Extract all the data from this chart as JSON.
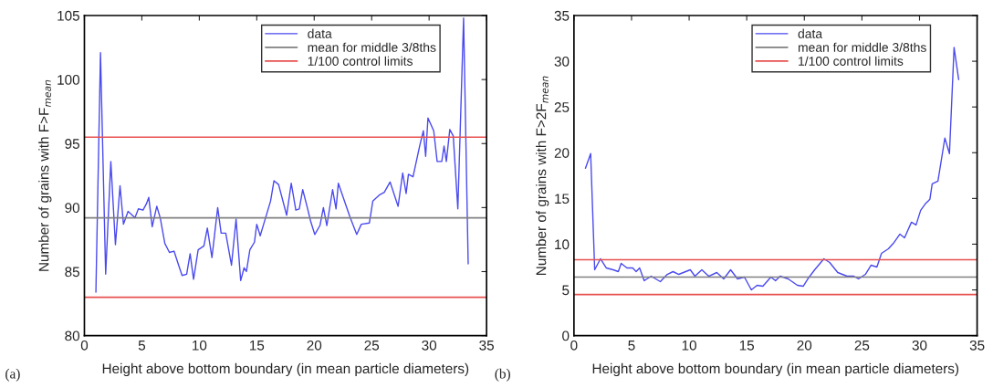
{
  "chart_data": [
    {
      "type": "line",
      "xlabel": "Height above bottom boundary (in mean particle diameters)",
      "ylabel": "Number of grains with F>F$_{mean}$",
      "annotations": [
        "(a)"
      ],
      "xlim": [
        0,
        35
      ],
      "xticks": [
        0,
        5,
        10,
        15,
        20,
        25,
        30,
        35
      ],
      "ylim": [
        80,
        105
      ],
      "yticks": [
        80,
        85,
        90,
        95,
        100,
        105
      ],
      "legend": "top right",
      "grid": false,
      "series": [
        {
          "name": "data",
          "color": "#4a4aee",
          "x": [
            1.0,
            1.4,
            1.85,
            2.3,
            2.7,
            3.1,
            3.4,
            3.8,
            4.4,
            4.7,
            5.1,
            5.4,
            5.6,
            5.9,
            6.3,
            6.6,
            7.0,
            7.4,
            7.8,
            8.2,
            8.5,
            8.9,
            9.2,
            9.5,
            9.9,
            10.4,
            10.7,
            11.1,
            11.6,
            11.9,
            12.3,
            12.8,
            13.2,
            13.6,
            13.9,
            14.1,
            14.4,
            14.8,
            15.0,
            15.3,
            15.7,
            16.2,
            16.5,
            16.9,
            17.6,
            18.0,
            18.4,
            18.7,
            19.0,
            19.4,
            19.7,
            20.05,
            20.5,
            20.8,
            21.1,
            21.6,
            21.9,
            22.1,
            23.1,
            23.7,
            24.1,
            24.8,
            25.1,
            25.7,
            26.1,
            26.6,
            27.3,
            27.7,
            28.0,
            28.2,
            28.6,
            29.2,
            29.5,
            29.7,
            29.9,
            30.4,
            30.7,
            31.1,
            31.3,
            31.5,
            31.8,
            32.1,
            32.5,
            33.0,
            33.4
          ],
          "values": [
            83.4,
            102.1,
            84.8,
            93.6,
            87.1,
            91.7,
            88.7,
            89.7,
            89.2,
            89.9,
            89.8,
            90.3,
            90.8,
            88.5,
            90.1,
            89.2,
            87.2,
            86.5,
            86.6,
            85.5,
            84.7,
            84.8,
            86.4,
            84.4,
            86.7,
            87.0,
            88.4,
            86.1,
            90.0,
            88.0,
            88.0,
            85.5,
            89.1,
            84.3,
            85.3,
            85.0,
            86.7,
            87.3,
            88.7,
            87.8,
            89.0,
            90.5,
            92.1,
            91.8,
            89.4,
            91.9,
            89.8,
            89.9,
            91.4,
            90.0,
            88.9,
            87.9,
            88.6,
            90.0,
            88.6,
            91.4,
            89.9,
            91.9,
            89.3,
            87.9,
            88.7,
            88.8,
            90.5,
            91.0,
            91.2,
            92.0,
            90.1,
            92.7,
            91.1,
            92.6,
            92.4,
            94.9,
            96.0,
            94.0,
            97.0,
            96.0,
            93.6,
            93.6,
            94.8,
            93.6,
            96.1,
            95.6,
            89.9,
            104.8,
            85.6
          ]
        }
      ],
      "ref_lines": [
        {
          "axis": "y",
          "value": 89.2,
          "label": "mean for middle 3/8ths",
          "color": "#808080"
        },
        {
          "axis": "y",
          "value": 95.5,
          "label": "1/100 control limits",
          "color": "#e85050"
        },
        {
          "axis": "y",
          "value": 83.0,
          "color": "#e85050"
        }
      ]
    },
    {
      "type": "line",
      "xlabel": "Height above bottom boundary (in mean particle diameters)",
      "ylabel": "Number of grains with F>2F$_{mean}$",
      "annotations": [
        "(b)"
      ],
      "xlim": [
        0,
        35
      ],
      "xticks": [
        0,
        5,
        10,
        15,
        20,
        25,
        30,
        35
      ],
      "ylim": [
        0,
        35
      ],
      "yticks": [
        0,
        5,
        10,
        15,
        20,
        25,
        30,
        35
      ],
      "legend": "top right",
      "grid": false,
      "series": [
        {
          "name": "data",
          "color": "#4a4aee",
          "x": [
            1.0,
            1.45,
            1.8,
            2.3,
            2.8,
            3.4,
            3.85,
            4.1,
            4.6,
            5.1,
            5.4,
            5.7,
            6.1,
            6.7,
            7.1,
            7.5,
            8.1,
            8.6,
            9.1,
            9.7,
            10.1,
            10.5,
            11.1,
            11.7,
            12.4,
            13.0,
            13.6,
            14.2,
            14.8,
            15.4,
            15.9,
            16.4,
            17.1,
            17.5,
            17.9,
            18.6,
            19.4,
            19.9,
            20.3,
            20.9,
            21.7,
            22.2,
            22.9,
            23.7,
            24.3,
            24.7,
            25.3,
            25.8,
            26.3,
            26.7,
            27.3,
            27.8,
            28.3,
            28.7,
            29.3,
            29.7,
            30.1,
            30.5,
            30.9,
            31.1,
            31.6,
            32.2,
            32.6,
            33.0,
            33.4
          ],
          "values": [
            18.3,
            19.9,
            7.2,
            8.4,
            7.4,
            7.2,
            7.0,
            7.9,
            7.4,
            7.4,
            7.0,
            7.4,
            6.0,
            6.5,
            6.2,
            5.9,
            6.7,
            7.0,
            6.7,
            7.0,
            7.2,
            6.5,
            7.2,
            6.5,
            6.9,
            6.2,
            7.2,
            6.2,
            6.4,
            5.0,
            5.5,
            5.4,
            6.4,
            6.0,
            6.5,
            6.2,
            5.5,
            5.4,
            6.2,
            7.2,
            8.4,
            8.0,
            6.9,
            6.5,
            6.5,
            6.2,
            6.7,
            7.7,
            7.5,
            9.0,
            9.5,
            10.2,
            11.1,
            10.7,
            12.4,
            12.1,
            13.7,
            14.4,
            14.9,
            16.6,
            16.9,
            21.6,
            19.9,
            31.5,
            28.0
          ]
        }
      ],
      "ref_lines": [
        {
          "axis": "y",
          "value": 6.4,
          "label": "mean for middle 3/8ths",
          "color": "#808080"
        },
        {
          "axis": "y",
          "value": 8.3,
          "label": "1/100 control limits",
          "color": "#e85050"
        },
        {
          "axis": "y",
          "value": 4.5,
          "color": "#e85050"
        }
      ]
    }
  ]
}
